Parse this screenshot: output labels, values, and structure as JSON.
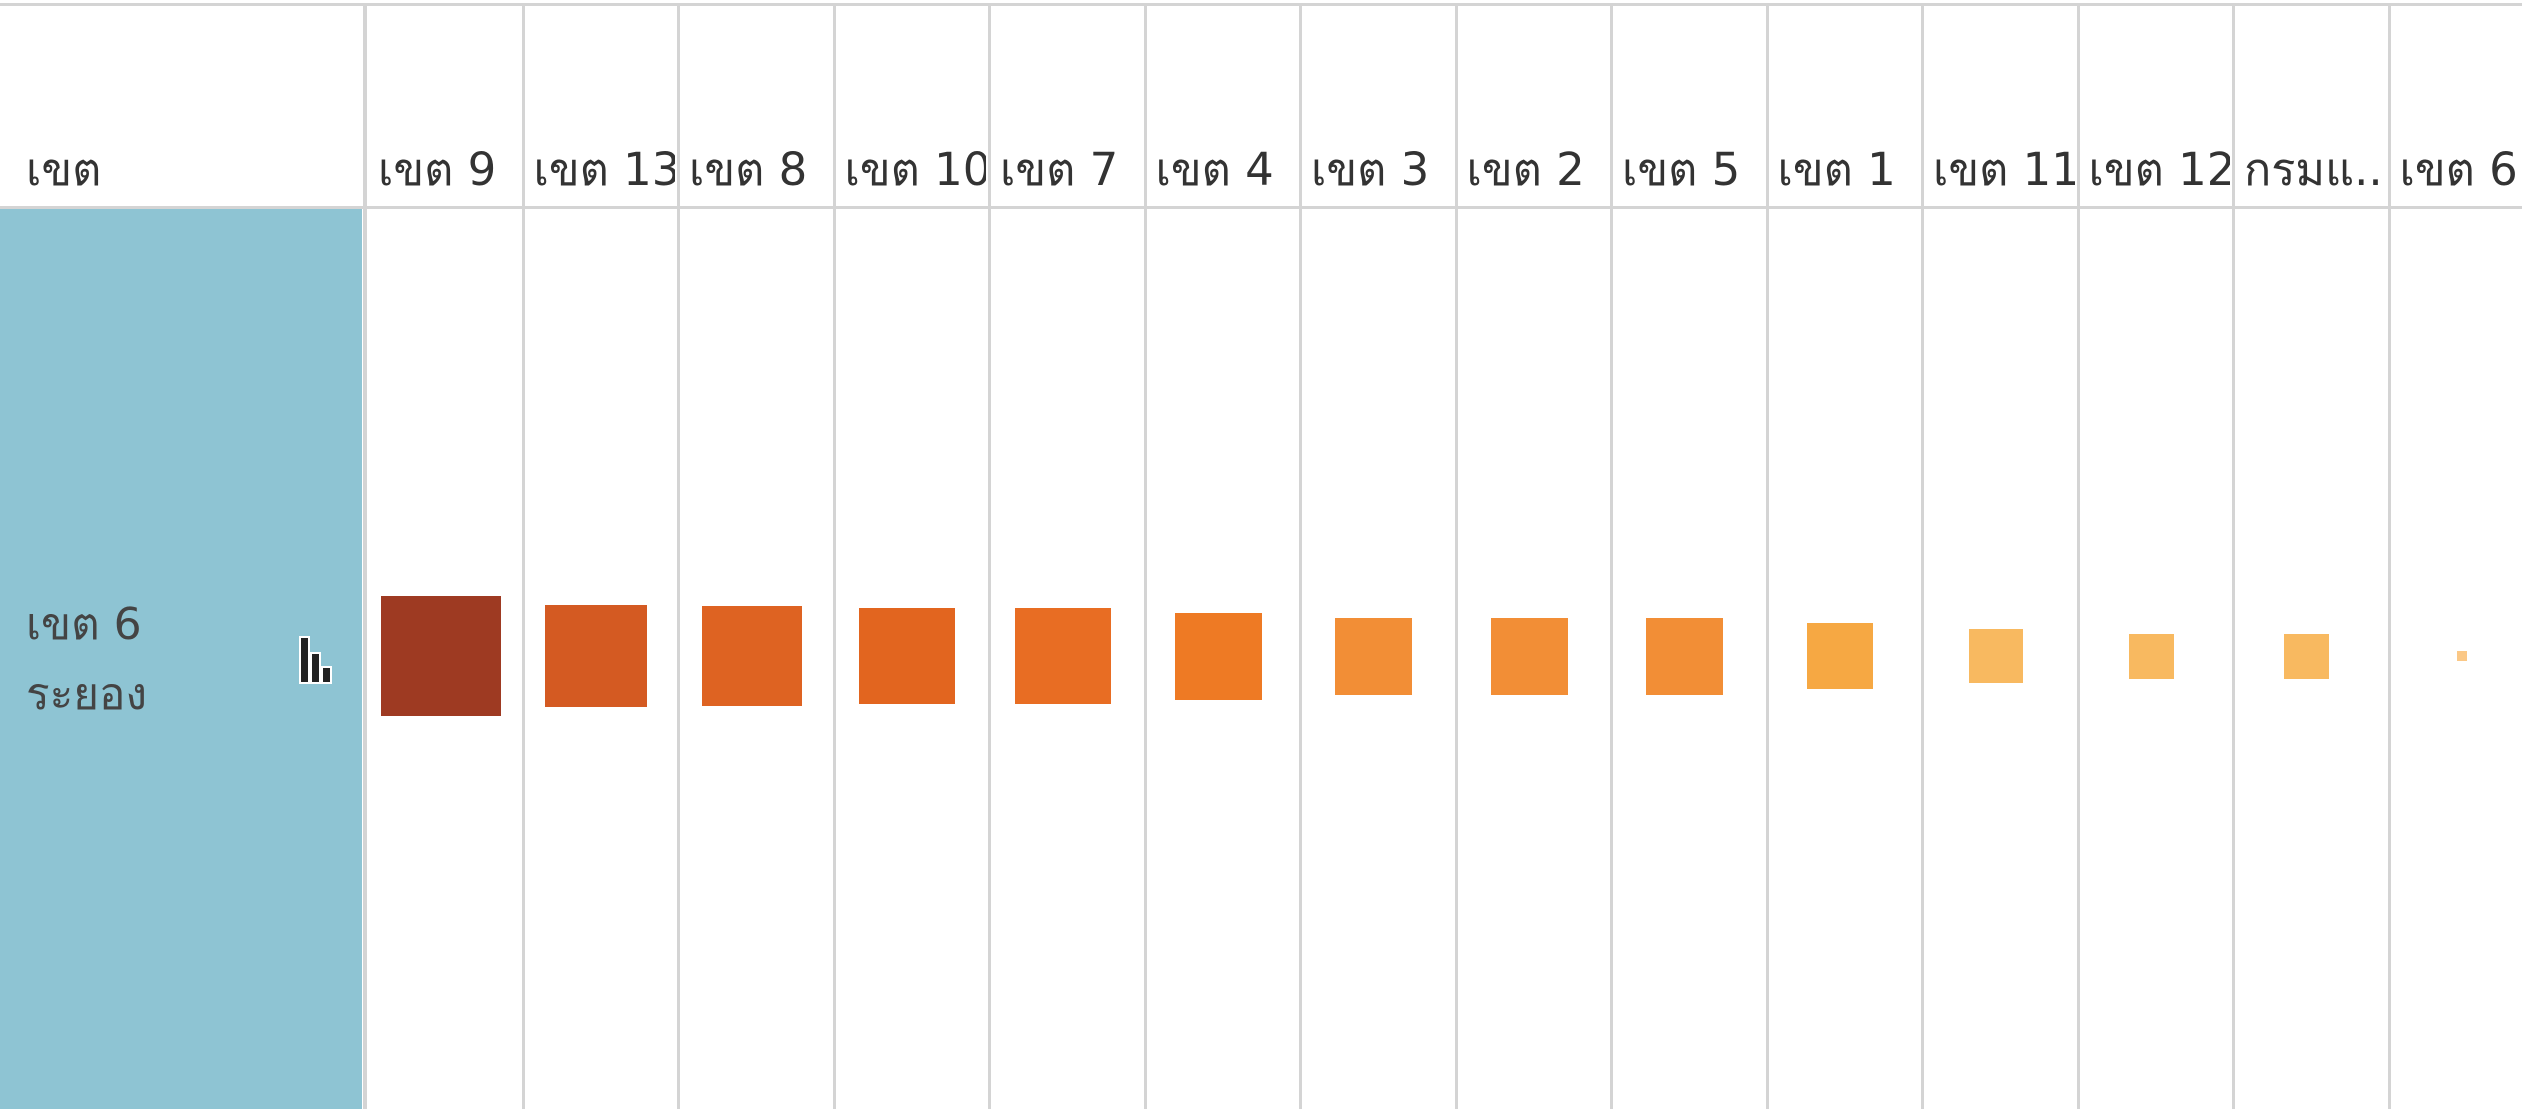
{
  "header": {
    "dimension_label": "เขต"
  },
  "row": {
    "label_line1": "เขต 6",
    "label_line2": "ระยอง",
    "icon": "bar-chart-icon",
    "color": "#8ec4d3"
  },
  "chart_data": {
    "type": "heatmap",
    "mark": "square",
    "encoding": "size and color represent relative value (no numeric labels shown)",
    "row_dimension": "เขต",
    "rows": [
      "เขต 6 ระยอง"
    ],
    "columns": [
      "เขต 9",
      "เขต 13",
      "เขต 8",
      "เขต 10",
      "เขต 7",
      "เขต 4",
      "เขต 3",
      "เขต 2",
      "เขต 5",
      "เขต 1",
      "เขต 11",
      "เขต 12",
      "กรมแ..",
      "เขต 6"
    ],
    "relative_values": [
      1.0,
      0.72,
      0.69,
      0.64,
      0.64,
      0.52,
      0.41,
      0.41,
      0.41,
      0.3,
      0.2,
      0.14,
      0.14,
      0.003
    ],
    "colors": [
      "#9e3a22",
      "#d45a22",
      "#de6322",
      "#e2651f",
      "#e86d23",
      "#ee7a24",
      "#f28e36",
      "#f28e36",
      "#f28e36",
      "#f6a843",
      "#f8b960",
      "#f8b960",
      "#f8b960",
      "#fbc886"
    ],
    "sort": "descending"
  }
}
